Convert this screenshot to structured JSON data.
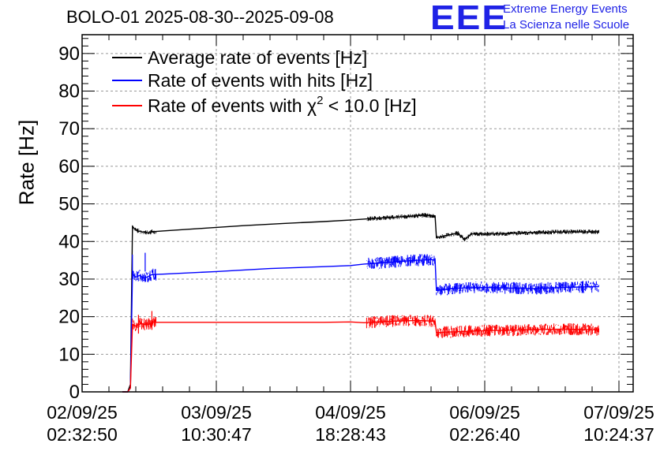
{
  "header": {
    "title": "BOLO-01 2025-08-30--2025-09-08",
    "logo_text": "EEE",
    "logo_line1": "Extreme Energy Events",
    "logo_line2": "La Scienza nelle Scuole"
  },
  "colors": {
    "average": "#000000",
    "hits": "#0000ff",
    "chi2": "#ff0000",
    "logo": "#1f22e6",
    "grid": "#999999"
  },
  "chart_data": {
    "type": "line",
    "ylabel": "Rate [Hz]",
    "xlabel": "",
    "ylim": [
      0,
      95
    ],
    "grid": true,
    "legend_placement": "top-left",
    "yticks": [
      0,
      10,
      20,
      30,
      40,
      50,
      60,
      70,
      80,
      90
    ],
    "xticks": [
      {
        "line1": "02/09/25",
        "line2": "02:32:50",
        "t": 0
      },
      {
        "line1": "03/09/25",
        "line2": "10:30:47",
        "t": 1
      },
      {
        "line1": "04/09/25",
        "line2": "18:28:43",
        "t": 2
      },
      {
        "line1": "06/09/25",
        "line2": "02:26:40",
        "t": 3
      },
      {
        "line1": "07/09/25",
        "line2": "10:24:37",
        "t": 4
      }
    ],
    "xlim_ticks": [
      0,
      4
    ],
    "series": [
      {
        "name": "Average rate of events [Hz]",
        "key": "average",
        "points": [
          [
            0.3,
            0
          ],
          [
            0.34,
            0
          ],
          [
            0.36,
            2
          ],
          [
            0.375,
            44
          ],
          [
            0.4,
            43
          ],
          [
            0.45,
            42.5
          ],
          [
            0.5,
            42.3
          ],
          [
            0.52,
            42.6
          ],
          [
            0.6,
            42.8
          ],
          [
            0.9,
            43.5
          ],
          [
            1.2,
            44.2
          ],
          [
            1.5,
            44.8
          ],
          [
            1.8,
            45.3
          ],
          [
            2.0,
            45.7
          ],
          [
            2.2,
            46.2
          ],
          [
            2.4,
            46.6
          ],
          [
            2.55,
            47.0
          ],
          [
            2.63,
            46.8
          ],
          [
            2.64,
            41.0
          ],
          [
            2.7,
            41.5
          ],
          [
            2.8,
            42.2
          ],
          [
            2.85,
            40.5
          ],
          [
            2.9,
            42.0
          ],
          [
            3.1,
            42.0
          ],
          [
            3.3,
            42.3
          ],
          [
            3.5,
            42.5
          ],
          [
            3.7,
            42.6
          ],
          [
            3.85,
            42.5
          ]
        ]
      },
      {
        "name": "Rate of events with hits [Hz]",
        "key": "hits",
        "points": [
          [
            0.3,
            0
          ],
          [
            0.34,
            0
          ],
          [
            0.36,
            1
          ],
          [
            0.375,
            31.5
          ],
          [
            0.4,
            30.5
          ],
          [
            0.43,
            31.0
          ],
          [
            0.46,
            30.2
          ],
          [
            0.5,
            30.8
          ],
          [
            0.52,
            31.2
          ],
          [
            0.6,
            31.3
          ],
          [
            1.0,
            32.0
          ],
          [
            1.4,
            32.8
          ],
          [
            1.8,
            33.3
          ],
          [
            2.0,
            33.6
          ],
          [
            2.1,
            34.0
          ],
          [
            2.3,
            34.5
          ],
          [
            2.5,
            35.0
          ],
          [
            2.63,
            35.2
          ],
          [
            2.64,
            27.0
          ],
          [
            2.8,
            27.6
          ],
          [
            3.0,
            27.8
          ],
          [
            3.2,
            27.6
          ],
          [
            3.4,
            27.5
          ],
          [
            3.6,
            27.8
          ],
          [
            3.85,
            28.0
          ]
        ],
        "spikes": [
          [
            0.47,
            37
          ],
          [
            0.375,
            36.5
          ]
        ]
      },
      {
        "name": "Rate of events with χ² < 10.0 [Hz]",
        "name_prefix": "Rate of events with ",
        "name_chi": "χ",
        "name_sup": "2",
        "name_suffix": " < 10.0 [Hz]",
        "key": "chi2",
        "points": [
          [
            0.3,
            0
          ],
          [
            0.34,
            0
          ],
          [
            0.36,
            1
          ],
          [
            0.375,
            18.0
          ],
          [
            0.4,
            17.5
          ],
          [
            0.44,
            18.2
          ],
          [
            0.48,
            17.8
          ],
          [
            0.5,
            18.0
          ],
          [
            0.52,
            18.5
          ],
          [
            0.6,
            18.5
          ],
          [
            1.0,
            18.5
          ],
          [
            1.4,
            18.5
          ],
          [
            1.8,
            18.5
          ],
          [
            2.0,
            18.6
          ],
          [
            2.1,
            18.4
          ],
          [
            2.3,
            18.8
          ],
          [
            2.5,
            19.0
          ],
          [
            2.63,
            18.8
          ],
          [
            2.64,
            15.8
          ],
          [
            2.8,
            16.0
          ],
          [
            3.0,
            16.3
          ],
          [
            3.2,
            16.4
          ],
          [
            3.4,
            16.6
          ],
          [
            3.6,
            16.7
          ],
          [
            3.85,
            16.5
          ]
        ],
        "spikes": [
          [
            0.52,
            21.5
          ],
          [
            0.42,
            20.5
          ]
        ]
      }
    ]
  }
}
